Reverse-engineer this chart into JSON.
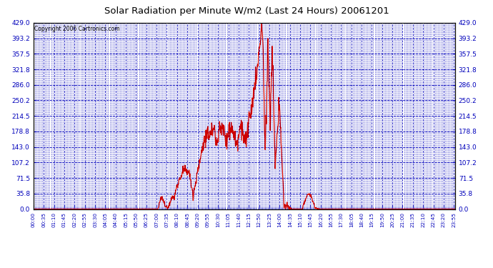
{
  "title": "Solar Radiation per Minute W/m2 (Last 24 Hours) 20061201",
  "copyright": "Copyright 2006 Cartronics.com",
  "background_color": "#FFFFFF",
  "plot_bg_color": "#FFFFFF",
  "line_color": "#CC0000",
  "grid_color": "#0000BB",
  "axis_color": "#000000",
  "tick_color": "#0000BB",
  "text_color": "#000000",
  "title_color": "#000000",
  "ylim": [
    0.0,
    429.0
  ],
  "yticks": [
    0.0,
    35.8,
    71.5,
    107.2,
    143.0,
    178.8,
    214.5,
    250.2,
    286.0,
    321.8,
    357.5,
    393.2,
    429.0
  ],
  "total_minutes": 1440,
  "xtick_major_interval": 35,
  "xtick_minor_interval": 5
}
